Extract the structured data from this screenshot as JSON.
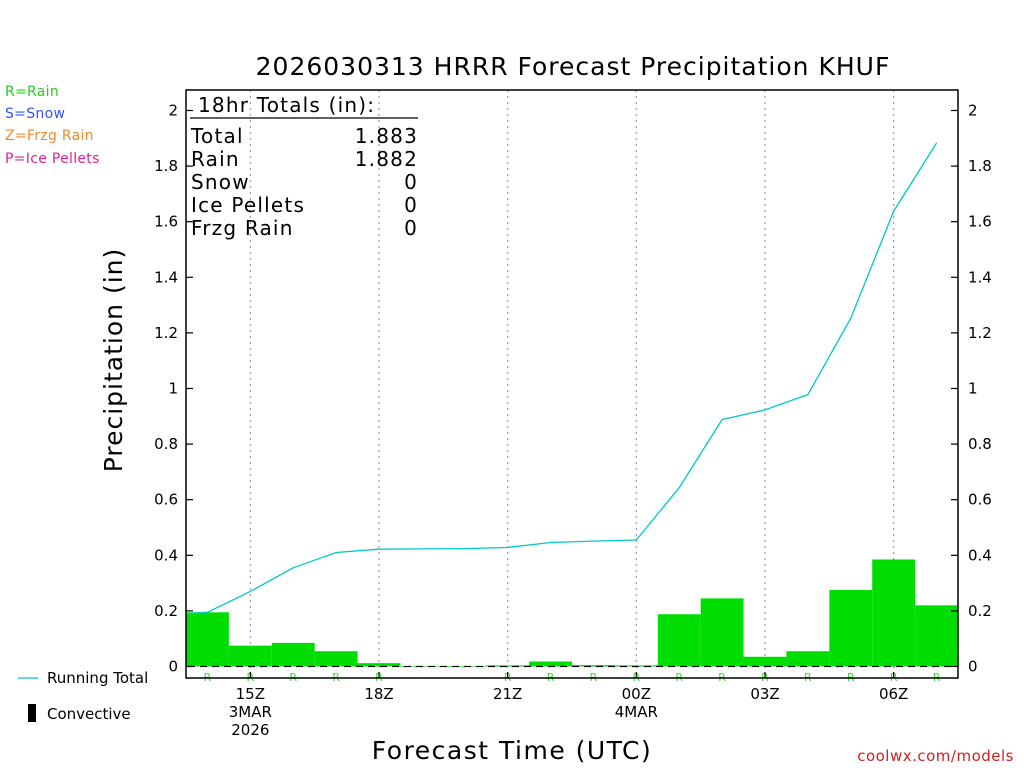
{
  "title": "2026030313 HRRR Forecast Precipitation KHUF",
  "legend_types": [
    {
      "label": "R=Rain",
      "color": "#22cc22"
    },
    {
      "label": "S=Snow",
      "color": "#3355ee"
    },
    {
      "label": "Z=Frzg Rain",
      "color": "#f08a30"
    },
    {
      "label": "P=Ice Pellets",
      "color": "#e0208c"
    }
  ],
  "totals_box": {
    "header": "18hr Totals (in):",
    "rows": [
      {
        "label": "Total",
        "value": "1.883"
      },
      {
        "label": "Rain",
        "value": "1.882"
      },
      {
        "label": "Snow",
        "value": "0"
      },
      {
        "label": "Ice Pellets",
        "value": "0"
      },
      {
        "label": "Frzg Rain",
        "value": "0"
      }
    ]
  },
  "bottom_legend": {
    "running_total": "Running Total",
    "convective": "Convective"
  },
  "footer_link": "coolwx.com/models",
  "colors": {
    "bars": "#00dd00",
    "line": "#00c8c8",
    "rain_marker": "#33dd33"
  },
  "chart_data": {
    "type": "bar",
    "ylabel": "Precipitation (in)",
    "xlabel": "Forecast Time (UTC)",
    "ylim": [
      0,
      2.07
    ],
    "yticks": [
      "0",
      "0.2",
      "0.4",
      "0.6",
      "0.8",
      "1",
      "1.2",
      "1.4",
      "1.6",
      "1.8",
      "2"
    ],
    "xlim": [
      13.5,
      31.5
    ],
    "xticks": [
      {
        "hour": 15,
        "lines": [
          "15Z",
          "3MAR",
          "2026"
        ]
      },
      {
        "hour": 18,
        "lines": [
          "18Z"
        ]
      },
      {
        "hour": 21,
        "lines": [
          "21Z"
        ]
      },
      {
        "hour": 24,
        "lines": [
          "00Z",
          "4MAR"
        ]
      },
      {
        "hour": 27,
        "lines": [
          "03Z"
        ]
      },
      {
        "hour": 30,
        "lines": [
          "06Z"
        ]
      }
    ],
    "hours": [
      14,
      15,
      16,
      17,
      18,
      19,
      20,
      21,
      22,
      23,
      24,
      25,
      26,
      27,
      28,
      29,
      30,
      31
    ],
    "hourly_precip": [
      0.195,
      0.075,
      0.085,
      0.055,
      0.012,
      0.001,
      0.001,
      0.004,
      0.018,
      0.005,
      0.004,
      0.188,
      0.245,
      0.035,
      0.055,
      0.275,
      0.385,
      0.22
    ],
    "running_total": [
      0.195,
      0.27,
      0.355,
      0.41,
      0.422,
      0.423,
      0.424,
      0.428,
      0.446,
      0.451,
      0.455,
      0.643,
      0.888,
      0.923,
      0.978,
      1.253,
      1.638,
      1.883
    ],
    "line_start": {
      "hour": 13.5,
      "value": 0.19
    },
    "ptype_markers": [
      "R",
      "R",
      "R",
      "R",
      "R",
      "",
      "",
      "R",
      "R",
      "R",
      "R",
      "R",
      "R",
      "R",
      "R",
      "R",
      "R",
      "R"
    ],
    "series": [
      {
        "name": "Running Total",
        "kind": "line"
      }
    ]
  }
}
